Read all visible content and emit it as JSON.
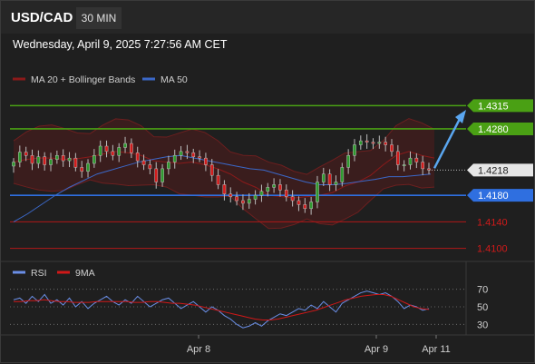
{
  "header": {
    "symbol": "USD/CAD",
    "timeframe": "30 MIN",
    "datetime": "Wednesday, April 9, 2025 7:27:56 AM CET"
  },
  "chart_data": [
    {
      "type": "candlestick",
      "legend": [
        {
          "name": "MA 20 + Bollinger Bands",
          "color": "#8b1a1a"
        },
        {
          "name": "MA 50",
          "color": "#3b68c8"
        }
      ],
      "ylim": [
        1.409,
        1.4336
      ],
      "levels": [
        {
          "value": 1.4315,
          "label": "1.4315",
          "color": "#4aa014",
          "kind": "resistance"
        },
        {
          "value": 1.428,
          "label": "1.4280",
          "color": "#4aa014",
          "kind": "resistance"
        },
        {
          "value": 1.4218,
          "label": "1.4218",
          "color": "#dddddd",
          "kind": "current"
        },
        {
          "value": 1.418,
          "label": "1.4180",
          "color": "#2f6fe0",
          "kind": "support"
        },
        {
          "value": 1.414,
          "label": "1.4140",
          "color": "#b01818",
          "kind": "support"
        },
        {
          "value": 1.41,
          "label": "1.4100",
          "color": "#b01818",
          "kind": "support"
        }
      ],
      "close_path": [
        1.423,
        1.4245,
        1.424,
        1.4228,
        1.4238,
        1.4226,
        1.4234,
        1.424,
        1.4232,
        1.4236,
        1.4222,
        1.4216,
        1.4228,
        1.424,
        1.4254,
        1.4246,
        1.424,
        1.4252,
        1.4258,
        1.4244,
        1.4232,
        1.4226,
        1.422,
        1.42,
        1.422,
        1.423,
        1.424,
        1.4246,
        1.4244,
        1.4238,
        1.4236,
        1.4226,
        1.421,
        1.4196,
        1.4182,
        1.4178,
        1.4172,
        1.4168,
        1.4174,
        1.418,
        1.4186,
        1.4192,
        1.4196,
        1.4188,
        1.4178,
        1.4172,
        1.4166,
        1.416,
        1.417,
        1.42,
        1.4212,
        1.4196,
        1.42,
        1.4222,
        1.424,
        1.4256,
        1.4262,
        1.426,
        1.4258,
        1.426,
        1.4256,
        1.4246,
        1.4226,
        1.4226,
        1.4236,
        1.423,
        1.422,
        1.4218
      ],
      "ma50_path": [
        1.414,
        1.4152,
        1.4166,
        1.418,
        1.4192,
        1.4202,
        1.4212,
        1.4218,
        1.4224,
        1.423,
        1.4234,
        1.4238,
        1.424,
        1.4236,
        1.4232,
        1.4228,
        1.4224,
        1.422,
        1.4218,
        1.4212,
        1.4206,
        1.42,
        1.4196,
        1.4196,
        1.4198,
        1.4201,
        1.4204,
        1.4208,
        1.4208,
        1.421,
        1.4212
      ],
      "ma20_path": [
        1.423,
        1.4234,
        1.4236,
        1.4236,
        1.4234,
        1.4235,
        1.4238,
        1.4242,
        1.4246,
        1.4244,
        1.424,
        1.4232,
        1.423,
        1.4228,
        1.423,
        1.4226,
        1.422,
        1.4212,
        1.42,
        1.4192,
        1.418,
        1.4178,
        1.4176,
        1.4178,
        1.418,
        1.4184,
        1.4194,
        1.42,
        1.421,
        1.4226,
        1.424,
        1.4246,
        1.424,
        1.4236
      ],
      "arrow_target": 1.4306
    },
    {
      "type": "line",
      "legend": [
        {
          "name": "RSI",
          "color": "#6a8ee6"
        },
        {
          "name": "9MA",
          "color": "#d11818"
        }
      ],
      "ylim": [
        20,
        80
      ],
      "y_ticks": [
        70,
        50,
        30
      ],
      "rsi": [
        58,
        60,
        54,
        62,
        56,
        64,
        54,
        58,
        52,
        60,
        50,
        56,
        48,
        54,
        58,
        62,
        56,
        52,
        58,
        54,
        62,
        56,
        50,
        54,
        58,
        60,
        54,
        48,
        52,
        56,
        50,
        44,
        50,
        46,
        40,
        36,
        30,
        26,
        28,
        32,
        28,
        34,
        38,
        42,
        40,
        44,
        48,
        46,
        52,
        48,
        56,
        50,
        44,
        54,
        58,
        62,
        66,
        68,
        66,
        64,
        66,
        62,
        56,
        48,
        52,
        50,
        46,
        48
      ],
      "ma9": [
        56,
        56,
        57,
        57,
        58,
        57,
        56,
        56,
        55,
        55,
        55,
        56,
        56,
        56,
        56,
        56,
        55,
        55,
        56,
        56,
        55,
        54,
        54,
        53,
        52,
        50,
        48,
        46,
        44,
        42,
        40,
        38,
        36,
        35,
        35,
        36,
        38,
        40,
        42,
        44,
        46,
        49,
        52,
        55,
        58,
        60,
        62,
        63,
        64,
        64,
        62,
        58,
        54,
        50,
        48,
        47
      ],
      "x_ticks": [
        "Apr 8",
        "Apr 9",
        "Apr 11"
      ]
    }
  ]
}
